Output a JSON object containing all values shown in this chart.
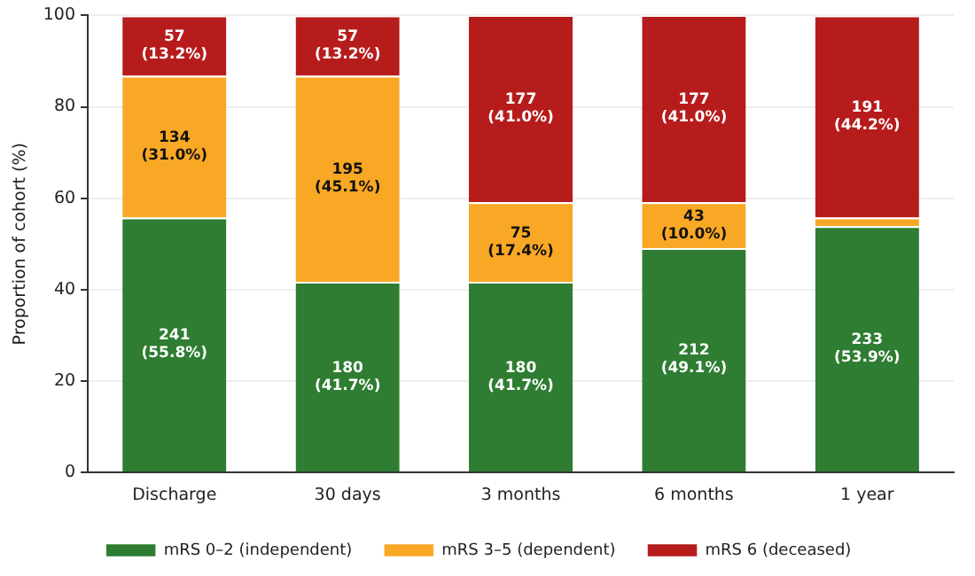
{
  "chart_data": {
    "type": "bar",
    "stacked": true,
    "ylabel": "Proportion of cohort (%)",
    "categories": [
      "Discharge",
      "30 days",
      "3 months",
      "6 months",
      "1 year"
    ],
    "series": [
      {
        "name": "mRS 0–2 (independent)",
        "color": "#2e7d32",
        "values": [
          55.8,
          41.7,
          41.7,
          49.1,
          53.9
        ],
        "value_labels": [
          "241\n(55.8%)",
          "180\n(41.7%)",
          "180\n(41.7%)",
          "212\n(49.1%)",
          "233\n(53.9%)"
        ]
      },
      {
        "name": "mRS 3–5 (dependent)",
        "color": "#f9a825",
        "values": [
          31.0,
          45.1,
          17.4,
          10.0,
          1.9
        ],
        "value_labels": [
          "134\n(31.0%)",
          "195\n(45.1%)",
          "75\n(17.4%)",
          "43\n(10.0%)",
          null
        ]
      },
      {
        "name": "mRS 6 (deceased)",
        "color": "#b71c1c",
        "values": [
          13.2,
          13.2,
          41.0,
          41.0,
          44.2
        ],
        "value_labels": [
          "57\n(13.2%)",
          "57\n(13.2%)",
          "177\n(41.0%)",
          "177\n(41.0%)",
          "191\n(44.2%)"
        ]
      }
    ],
    "ylim": [
      0,
      100
    ],
    "yticks": [
      0,
      20,
      40,
      60,
      80,
      100
    ],
    "grid": "y",
    "legend": "bottom"
  }
}
